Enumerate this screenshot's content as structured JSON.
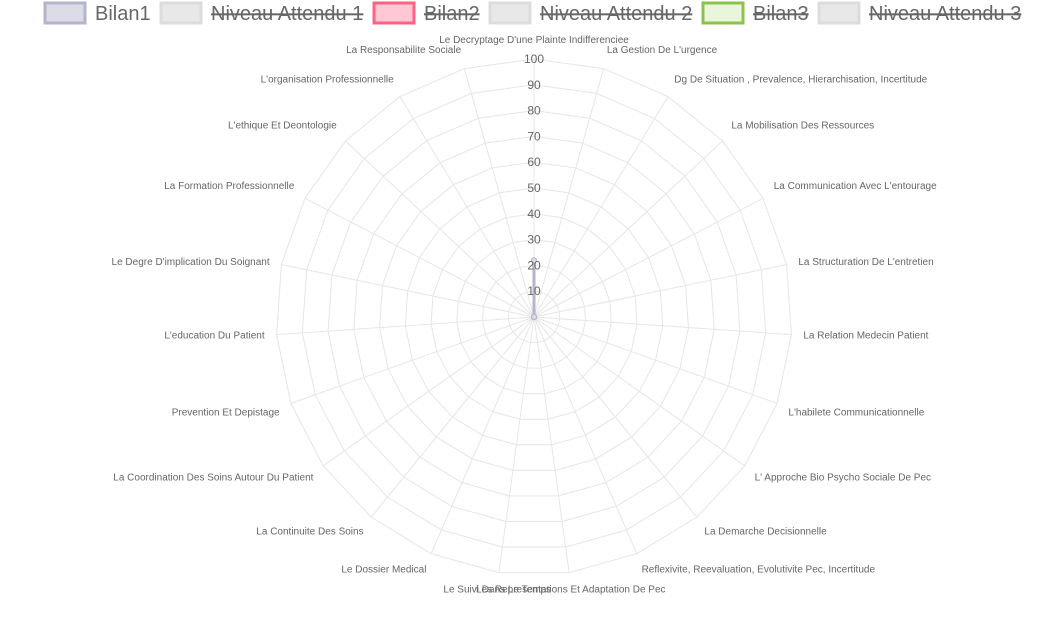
{
  "chart_data": {
    "type": "radar",
    "title": "",
    "rlim": [
      0,
      100
    ],
    "ticks": [
      "10",
      "20",
      "30",
      "40",
      "50",
      "60",
      "70",
      "80",
      "90",
      "100"
    ],
    "grid": true,
    "legend_position": "top",
    "axes": [
      "Le Decryptage D'une Plainte Indifferenciee",
      "La Gestion De L'urgence",
      "Dg De Situation , Prevalence, Hierarchisation, Incertitude",
      "La Mobilisation Des Ressources",
      "La Communication Avec L'entourage",
      "La Structuration De L'entretien",
      "La Relation Medecin Patient",
      "L'habilete Communicationnelle",
      "L' Approche Bio Psycho Sociale De Pec",
      "La Demarche Decisionnelle",
      "Reflexivite, Reevaluation, Evolutivite Pec, Incertitude",
      "Les Representations Et Adaptation De Pec",
      "Le Suivi Dans Le Temps",
      "Le Dossier Medical",
      "La Continuite Des Soins",
      "La Coordination Des Soins Autour Du Patient",
      "Prevention Et Depistage",
      "L'education Du Patient",
      "Le Degre D'implication Du Soignant",
      "La Formation Professionnelle",
      "L'ethique Et Deontologie",
      "L'organisation Professionnelle",
      "La Responsabilite Sociale"
    ],
    "series": [
      {
        "name": "Bilan1",
        "hidden": false,
        "color": "#b4b4cc",
        "fill": "#dcdce8",
        "values": [
          22,
          0,
          0,
          0,
          0,
          0,
          0,
          0,
          0,
          0,
          0,
          0,
          0,
          0,
          0,
          0,
          0,
          0,
          0,
          0,
          0,
          0,
          0
        ]
      },
      {
        "name": "Niveau Attendu 1",
        "hidden": true,
        "color": "#dcdcdc",
        "fill": "#e8e8e8",
        "values": []
      },
      {
        "name": "Bilan2",
        "hidden": true,
        "color": "#ff6384",
        "fill": "#ffc8d4",
        "values": []
      },
      {
        "name": "Niveau Attendu 2",
        "hidden": true,
        "color": "#dcdcdc",
        "fill": "#e8e8e8",
        "values": []
      },
      {
        "name": "Bilan3",
        "hidden": true,
        "color": "#8bc34a",
        "fill": "#eaf6dc",
        "values": []
      },
      {
        "name": "Niveau Attendu 3",
        "hidden": true,
        "color": "#dcdcdc",
        "fill": "#e8e8e8",
        "values": []
      }
    ]
  }
}
